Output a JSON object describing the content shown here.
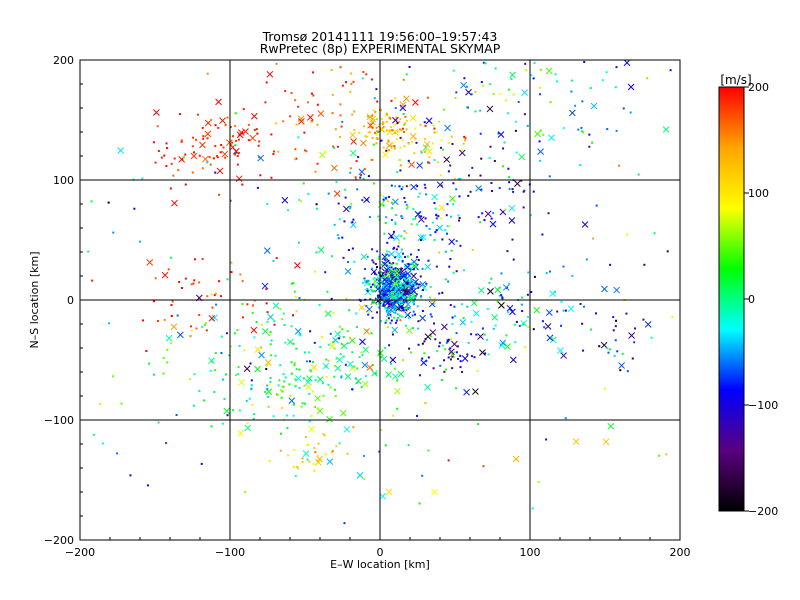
{
  "chart_data": {
    "type": "scatter",
    "title": "Tromsø 20141111 19:56:00–19:57:43",
    "subtitle": "RwPretec (8p) EXPERIMENTAL SKYMAP",
    "xlabel": "E–W location [km]",
    "ylabel": "N–S location [km]",
    "xlim": [
      -200,
      200
    ],
    "ylim": [
      -200,
      200
    ],
    "xticks": [
      "−200",
      "−100",
      "0",
      "100",
      "200"
    ],
    "yticks": [
      "−200",
      "−100",
      "0",
      "100",
      "200"
    ],
    "grid": true,
    "markers": [
      "dot",
      "cross"
    ],
    "colorbar": {
      "label": "[m/s]",
      "range": [
        -200,
        200
      ],
      "ticks": [
        "200",
        "100",
        "0",
        "−100",
        "−200"
      ],
      "colormap": "rainbow",
      "colors": [
        "#000000",
        "#5a0080",
        "#0000ff",
        "#00ffff",
        "#00ff00",
        "#ffff00",
        "#ffa500",
        "#ff0000"
      ]
    },
    "clusters": [
      {
        "x": 10,
        "y": 10,
        "sx": 9,
        "sy": 12,
        "n": 600,
        "v": -60,
        "vs": 55
      },
      {
        "x": -55,
        "y": -55,
        "sx": 40,
        "sy": 30,
        "n": 260,
        "v": 10,
        "vs": 45
      },
      {
        "x": 15,
        "y": 70,
        "sx": 30,
        "sy": 25,
        "n": 150,
        "v": -60,
        "vs": 60
      },
      {
        "x": -110,
        "y": 130,
        "sx": 25,
        "sy": 20,
        "n": 90,
        "v": 190,
        "vs": 15
      },
      {
        "x": -30,
        "y": 150,
        "sx": 35,
        "sy": 25,
        "n": 90,
        "v": 170,
        "vs": 30
      },
      {
        "x": 0,
        "y": 145,
        "sx": 10,
        "sy": 8,
        "n": 60,
        "v": 130,
        "vs": 20
      },
      {
        "x": 25,
        "y": 130,
        "sx": 15,
        "sy": 15,
        "n": 50,
        "v": 100,
        "vs": 40
      },
      {
        "x": 70,
        "y": 100,
        "sx": 30,
        "sy": 30,
        "n": 70,
        "v": -110,
        "vs": 50
      },
      {
        "x": 100,
        "y": 170,
        "sx": 50,
        "sy": 20,
        "n": 90,
        "v": -30,
        "vs": 60
      },
      {
        "x": -120,
        "y": 5,
        "sx": 30,
        "sy": 20,
        "n": 50,
        "v": 185,
        "vs": 20
      },
      {
        "x": 80,
        "y": -10,
        "sx": 30,
        "sy": 20,
        "n": 90,
        "v": -50,
        "vs": 60
      },
      {
        "x": 160,
        "y": -25,
        "sx": 20,
        "sy": 20,
        "n": 35,
        "v": -90,
        "vs": 60
      },
      {
        "x": 40,
        "y": -45,
        "sx": 15,
        "sy": 10,
        "n": 40,
        "v": -120,
        "vs": 40
      },
      {
        "x": -45,
        "y": -125,
        "sx": 12,
        "sy": 10,
        "n": 30,
        "v": 110,
        "vs": 25
      },
      {
        "x": 0,
        "y": 0,
        "sx": 120,
        "sy": 110,
        "n": 260,
        "v": 0,
        "vs": 90
      }
    ]
  }
}
